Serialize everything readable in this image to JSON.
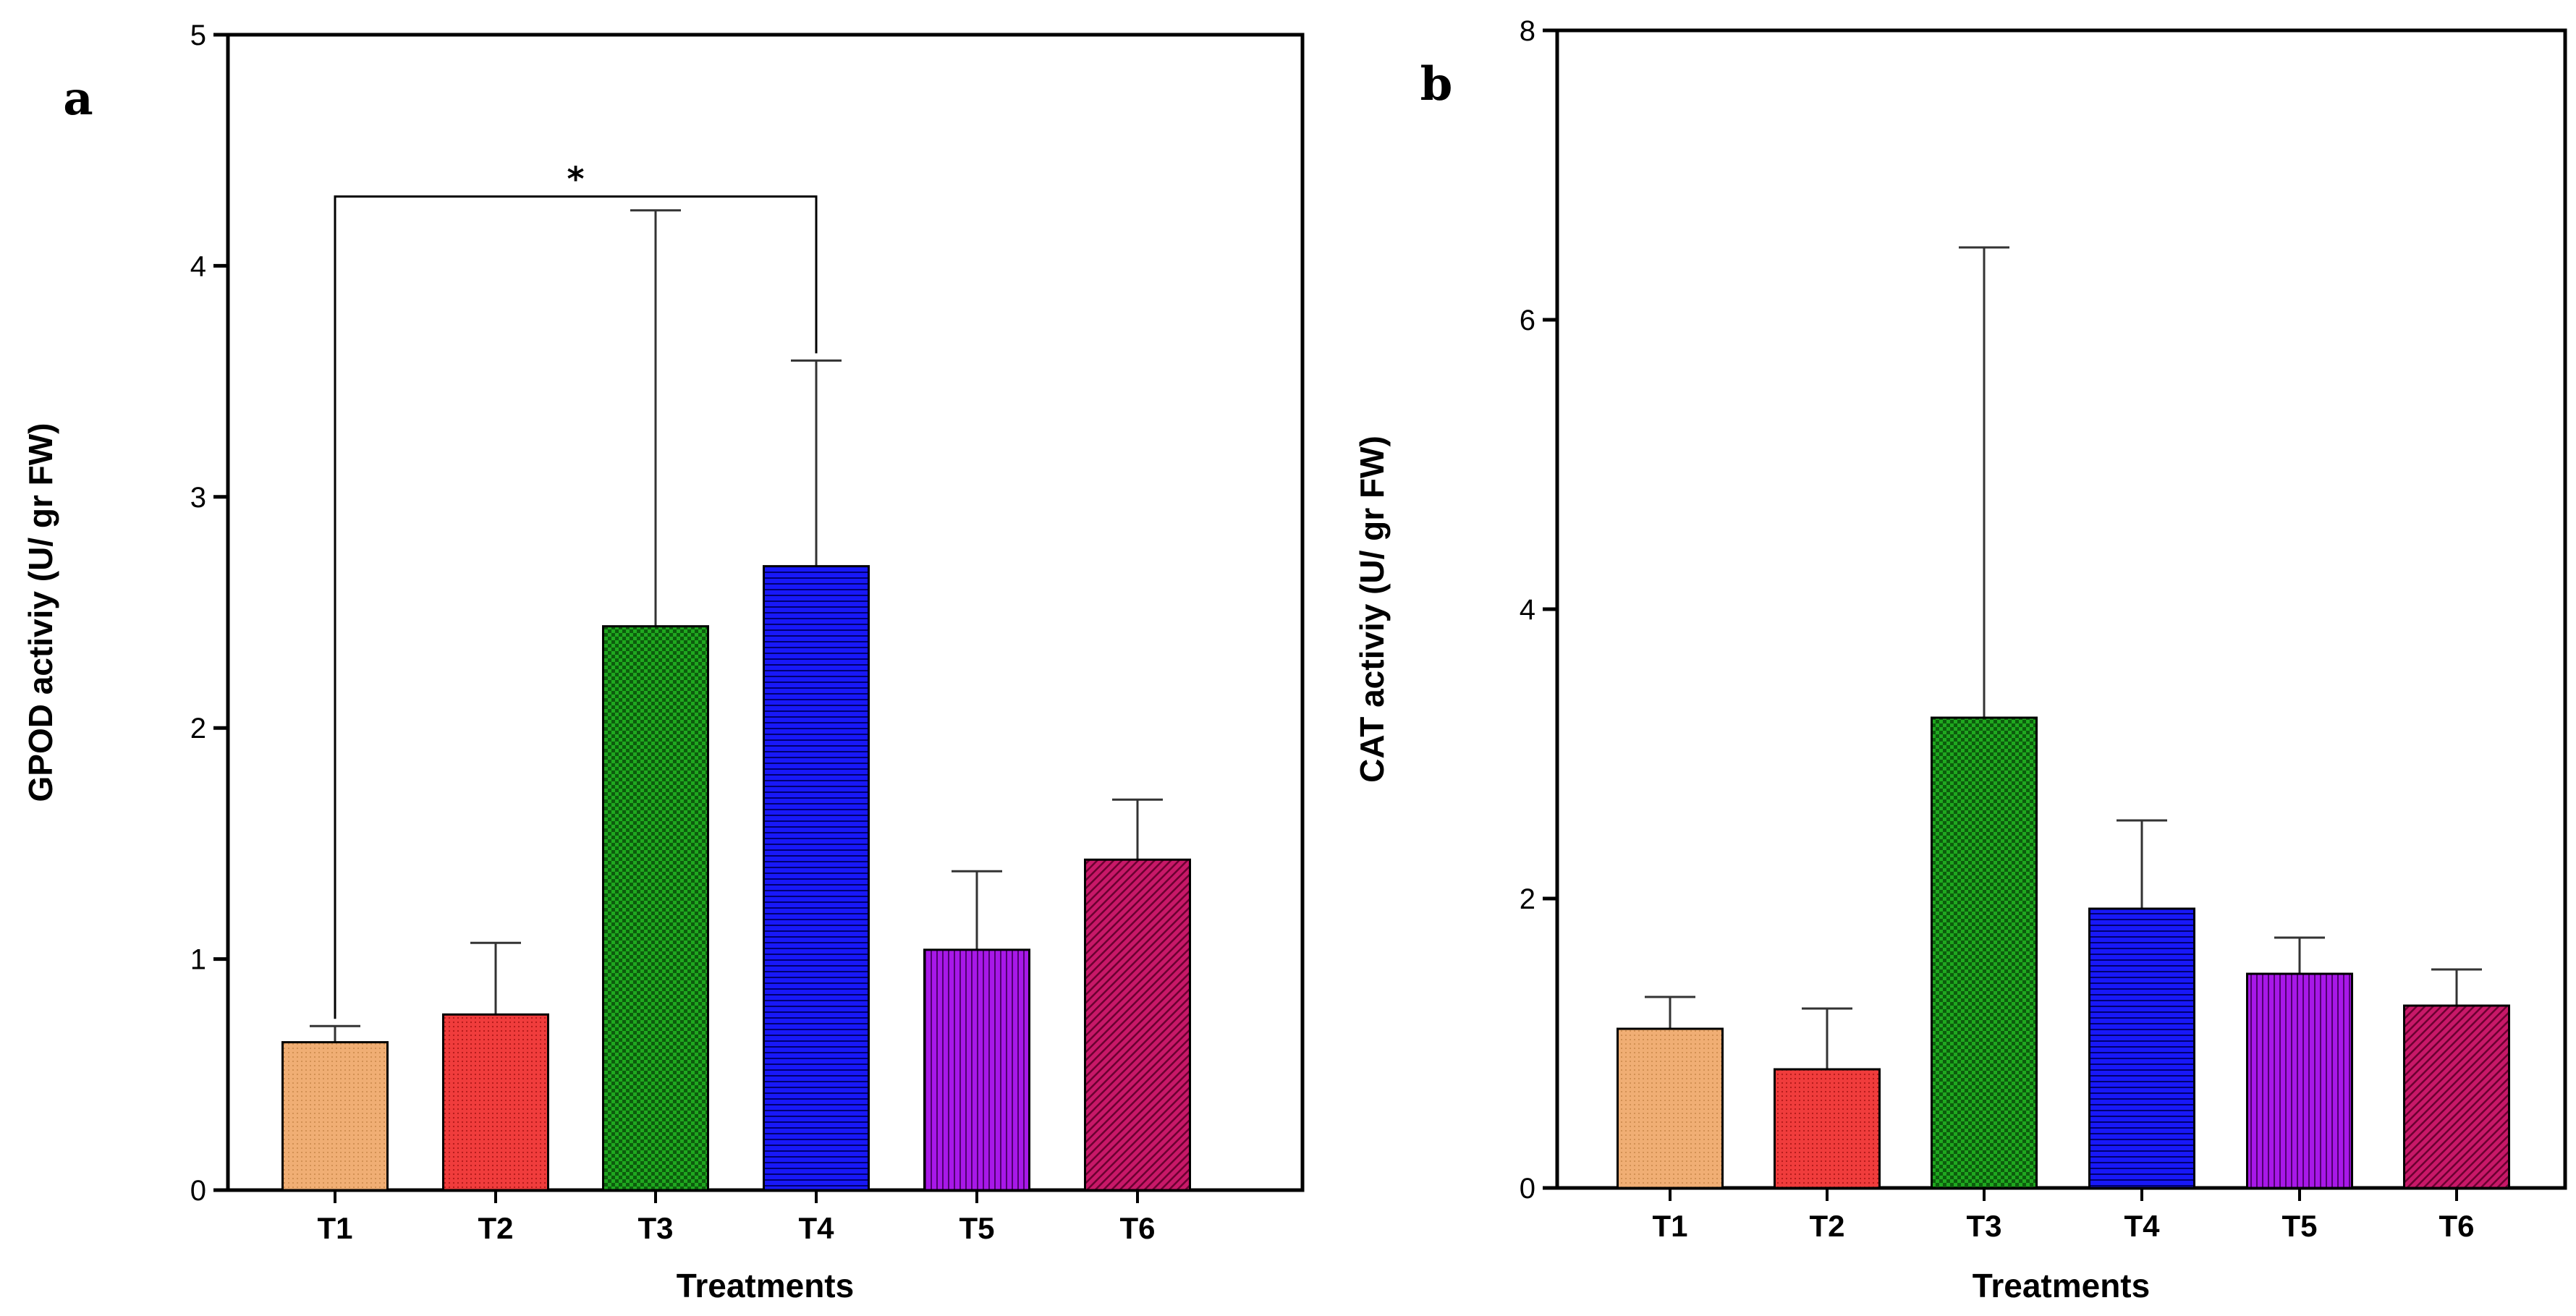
{
  "chart_data": [
    {
      "type": "bar",
      "panel": "a",
      "title": "",
      "xlabel": "Treatments",
      "ylabel": "GPOD activiy (U/ gr FW)",
      "categories": [
        "T1",
        "T2",
        "T3",
        "T4",
        "T5",
        "T6"
      ],
      "values": [
        0.64,
        0.76,
        2.44,
        2.7,
        1.04,
        1.43
      ],
      "error_upper": [
        0.07,
        0.31,
        1.8,
        0.89,
        0.34,
        0.26
      ],
      "ylim": [
        0,
        5
      ],
      "yticks": [
        0,
        1,
        2,
        3,
        4,
        5
      ],
      "colors": [
        "#f0ae74",
        "#f03c3c",
        "#1fa81f",
        "#1010f0",
        "#a010e0",
        "#c01060"
      ],
      "significance": [
        {
          "from": "T1",
          "to": "T4",
          "y": 4.3,
          "label": "*"
        }
      ],
      "grid": false,
      "legend": "none"
    },
    {
      "type": "bar",
      "panel": "b",
      "title": "",
      "xlabel": "Treatments",
      "ylabel": "CAT activiy (U/ gr FW)",
      "categories": [
        "T1",
        "T2",
        "T3",
        "T4",
        "T5",
        "T6"
      ],
      "values": [
        1.1,
        0.82,
        3.25,
        1.93,
        1.48,
        1.26
      ],
      "error_upper": [
        0.22,
        0.42,
        3.25,
        0.61,
        0.25,
        0.25
      ],
      "ylim": [
        0,
        8
      ],
      "yticks": [
        0,
        2,
        4,
        6,
        8
      ],
      "colors": [
        "#f0ae74",
        "#f03c3c",
        "#1fa81f",
        "#1010f0",
        "#a010e0",
        "#c01060"
      ],
      "significance": [],
      "grid": false,
      "legend": "none"
    }
  ]
}
